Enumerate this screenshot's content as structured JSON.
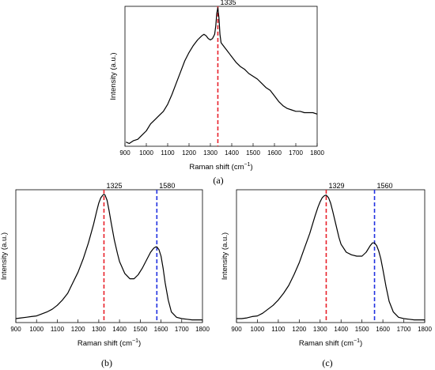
{
  "chart_data": [
    {
      "type": "line",
      "panel_label": "(a)",
      "xlabel": "Raman shift (cm",
      "xlabel_sup": "−1",
      "xlabel_close": ")",
      "ylabel": "Intensity (a.u.)",
      "xlim": [
        900,
        1800
      ],
      "ylim": [
        0,
        1
      ],
      "xticks": [
        "900",
        "1000",
        "1100",
        "1200",
        "1300",
        "1400",
        "1500",
        "1600",
        "1700",
        "1800"
      ],
      "grid": false,
      "x": [
        905,
        920,
        940,
        960,
        980,
        1000,
        1020,
        1040,
        1060,
        1080,
        1100,
        1120,
        1140,
        1160,
        1180,
        1200,
        1220,
        1240,
        1260,
        1270,
        1280,
        1290,
        1300,
        1310,
        1320,
        1325,
        1330,
        1335,
        1340,
        1345,
        1350,
        1360,
        1370,
        1380,
        1390,
        1400,
        1420,
        1440,
        1460,
        1480,
        1500,
        1520,
        1540,
        1560,
        1580,
        1600,
        1620,
        1640,
        1660,
        1680,
        1700,
        1720,
        1740,
        1760,
        1780,
        1800
      ],
      "y": [
        0.03,
        0.02,
        0.04,
        0.05,
        0.08,
        0.11,
        0.16,
        0.19,
        0.22,
        0.25,
        0.3,
        0.37,
        0.45,
        0.53,
        0.61,
        0.67,
        0.72,
        0.76,
        0.79,
        0.8,
        0.79,
        0.77,
        0.76,
        0.77,
        0.8,
        0.86,
        0.95,
        0.99,
        0.92,
        0.8,
        0.74,
        0.72,
        0.7,
        0.68,
        0.66,
        0.64,
        0.6,
        0.57,
        0.55,
        0.52,
        0.5,
        0.48,
        0.45,
        0.42,
        0.4,
        0.36,
        0.32,
        0.29,
        0.27,
        0.26,
        0.25,
        0.25,
        0.24,
        0.24,
        0.24,
        0.23
      ],
      "peaks": [
        {
          "x": 1335,
          "label": "1335",
          "color": "#e8202a"
        }
      ]
    },
    {
      "type": "line",
      "panel_label": "(b)",
      "xlabel": "Raman shift (cm",
      "xlabel_sup": "−1",
      "xlabel_close": ")",
      "ylabel": "Intensity (a.u.)",
      "xlim": [
        900,
        1800
      ],
      "ylim": [
        0,
        1
      ],
      "xticks": [
        "900",
        "1000",
        "1100",
        "1200",
        "1300",
        "1400",
        "1500",
        "1600",
        "1700",
        "1800"
      ],
      "grid": false,
      "x": [
        900,
        925,
        950,
        975,
        1000,
        1025,
        1050,
        1075,
        1100,
        1125,
        1150,
        1175,
        1200,
        1225,
        1250,
        1275,
        1290,
        1300,
        1310,
        1320,
        1325,
        1330,
        1340,
        1350,
        1360,
        1375,
        1390,
        1400,
        1425,
        1450,
        1470,
        1490,
        1510,
        1530,
        1550,
        1565,
        1575,
        1580,
        1590,
        1600,
        1610,
        1620,
        1635,
        1650,
        1675,
        1700,
        1725,
        1750,
        1775,
        1800
      ],
      "y": [
        0.03,
        0.035,
        0.04,
        0.045,
        0.05,
        0.065,
        0.08,
        0.1,
        0.13,
        0.17,
        0.22,
        0.3,
        0.38,
        0.48,
        0.6,
        0.74,
        0.84,
        0.9,
        0.94,
        0.96,
        0.965,
        0.96,
        0.92,
        0.84,
        0.75,
        0.62,
        0.52,
        0.46,
        0.37,
        0.33,
        0.33,
        0.36,
        0.41,
        0.47,
        0.53,
        0.56,
        0.57,
        0.57,
        0.55,
        0.5,
        0.41,
        0.3,
        0.17,
        0.08,
        0.04,
        0.03,
        0.025,
        0.02,
        0.02,
        0.02
      ],
      "peaks": [
        {
          "x": 1325,
          "label": "1325",
          "color": "#e8202a"
        },
        {
          "x": 1580,
          "label": "1580",
          "color": "#2030e0"
        }
      ]
    },
    {
      "type": "line",
      "panel_label": "(c)",
      "xlabel": "Raman shift (cm",
      "xlabel_sup": "−1",
      "xlabel_close": ")",
      "ylabel": "Intensity (a.u.)",
      "xlim": [
        900,
        1800
      ],
      "ylim": [
        0,
        1
      ],
      "xticks": [
        "900",
        "1000",
        "1100",
        "1200",
        "1300",
        "1400",
        "1500",
        "1600",
        "1700",
        "1800"
      ],
      "grid": false,
      "x": [
        900,
        925,
        950,
        975,
        1000,
        1025,
        1050,
        1075,
        1100,
        1125,
        1150,
        1175,
        1200,
        1225,
        1250,
        1275,
        1290,
        1300,
        1310,
        1320,
        1329,
        1340,
        1350,
        1360,
        1375,
        1390,
        1400,
        1425,
        1450,
        1475,
        1500,
        1520,
        1540,
        1550,
        1560,
        1570,
        1580,
        1590,
        1600,
        1615,
        1630,
        1650,
        1675,
        1700,
        1725,
        1750,
        1775,
        1800
      ],
      "y": [
        0.03,
        0.03,
        0.035,
        0.045,
        0.05,
        0.07,
        0.1,
        0.13,
        0.17,
        0.22,
        0.28,
        0.36,
        0.45,
        0.56,
        0.67,
        0.8,
        0.87,
        0.91,
        0.94,
        0.955,
        0.96,
        0.94,
        0.9,
        0.84,
        0.74,
        0.64,
        0.59,
        0.53,
        0.51,
        0.5,
        0.5,
        0.53,
        0.58,
        0.6,
        0.6,
        0.58,
        0.54,
        0.48,
        0.4,
        0.27,
        0.16,
        0.08,
        0.04,
        0.03,
        0.025,
        0.02,
        0.02,
        0.02
      ],
      "peaks": [
        {
          "x": 1329,
          "label": "1329",
          "color": "#e8202a"
        },
        {
          "x": 1560,
          "label": "1560",
          "color": "#2030e0"
        }
      ]
    }
  ]
}
